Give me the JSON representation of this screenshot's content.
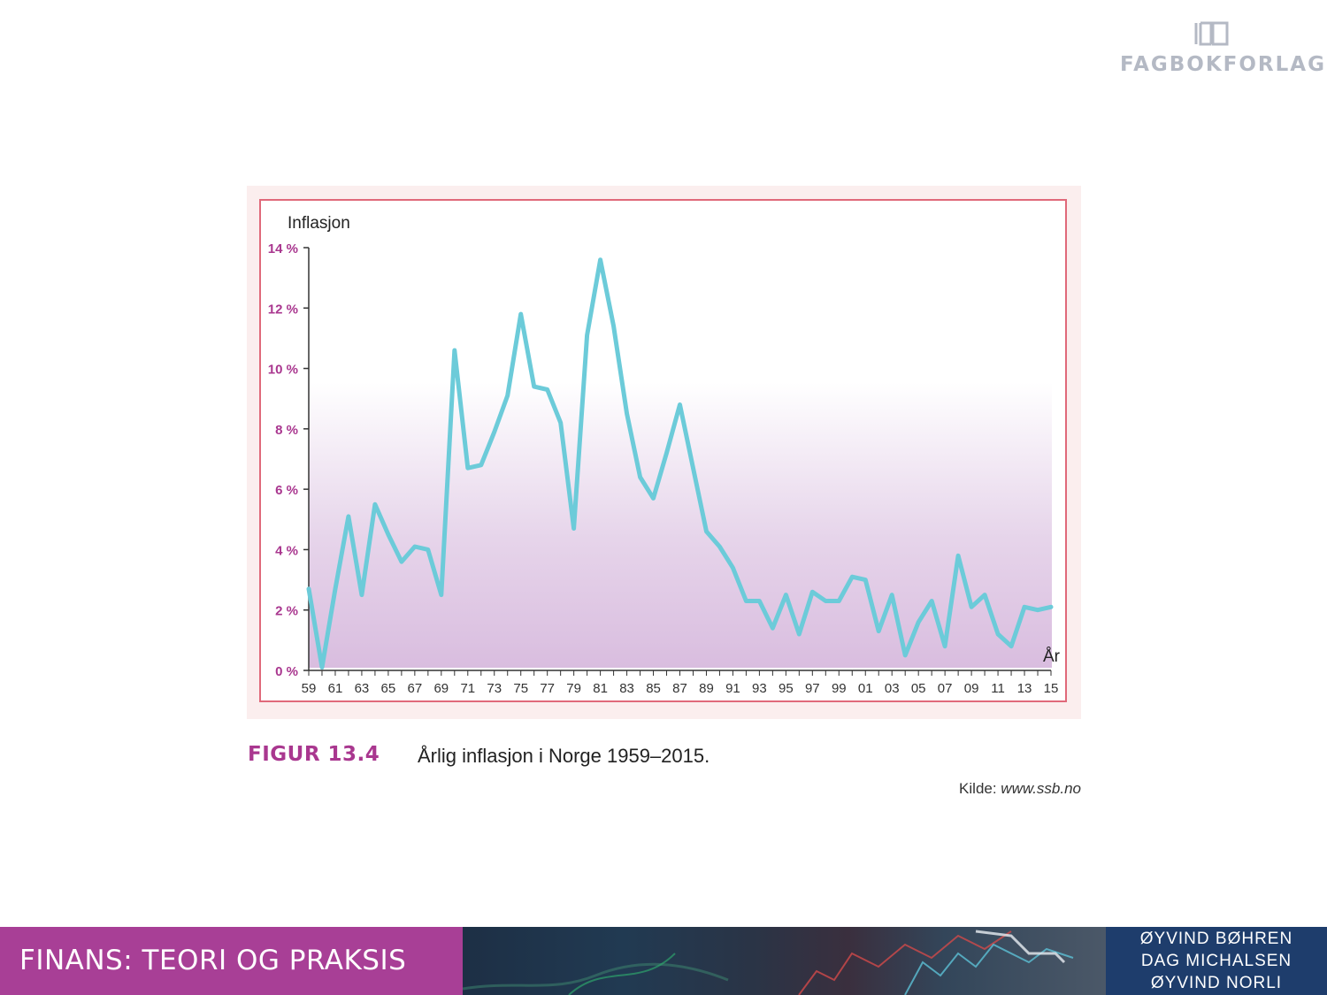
{
  "publisher": {
    "name": "FAGBOKFORLAGET",
    "icon": "book-logo-icon"
  },
  "figure": {
    "label": "FIGUR 13.4",
    "title": "Årlig inflasjon i Norge 1959–2015.",
    "source_prefix": "Kilde: ",
    "source_url": "www.ssb.no"
  },
  "footer": {
    "title": "FINANS: TEORI OG PRAKSIS",
    "authors": [
      "ØYVIND BØHREN",
      "DAG MICHALSEN",
      "ØYVIND NORLI"
    ]
  },
  "colors": {
    "accent": "#a9378f",
    "line": "#6ccbd9",
    "frame": "#e0697a",
    "footer_left": "#a83f96",
    "footer_right": "#1e3d6c"
  },
  "chart_data": {
    "type": "line",
    "title": "",
    "ylabel": "Inflasjon",
    "xlabel": "År",
    "ylim": [
      0,
      14
    ],
    "xlim": [
      1959,
      2015
    ],
    "y_ticks": [
      0,
      2,
      4,
      6,
      8,
      10,
      12,
      14
    ],
    "y_tick_labels": [
      "0 %",
      "2 %",
      "4 %",
      "6 %",
      "8 %",
      "10 %",
      "12 %",
      "14 %"
    ],
    "x_tick_years": [
      1959,
      1961,
      1963,
      1965,
      1967,
      1969,
      1971,
      1973,
      1975,
      1977,
      1979,
      1981,
      1983,
      1985,
      1987,
      1989,
      1991,
      1993,
      1995,
      1997,
      1999,
      2001,
      2003,
      2005,
      2007,
      2009,
      2011,
      2013,
      2015
    ],
    "x_tick_labels": [
      "59",
      "61",
      "63",
      "65",
      "67",
      "69",
      "71",
      "73",
      "75",
      "77",
      "79",
      "81",
      "83",
      "85",
      "87",
      "89",
      "91",
      "93",
      "95",
      "97",
      "99",
      "01",
      "03",
      "05",
      "07",
      "09",
      "11",
      "13",
      "15"
    ],
    "series": [
      {
        "name": "Inflasjon",
        "x": [
          1959,
          1960,
          1961,
          1962,
          1963,
          1964,
          1965,
          1966,
          1967,
          1968,
          1969,
          1970,
          1971,
          1972,
          1973,
          1974,
          1975,
          1976,
          1977,
          1978,
          1979,
          1980,
          1981,
          1982,
          1983,
          1984,
          1985,
          1986,
          1987,
          1988,
          1989,
          1990,
          1991,
          1992,
          1993,
          1994,
          1995,
          1996,
          1997,
          1998,
          1999,
          2000,
          2001,
          2002,
          2003,
          2004,
          2005,
          2006,
          2007,
          2008,
          2009,
          2010,
          2011,
          2012,
          2013,
          2014,
          2015
        ],
        "values": [
          2.7,
          0.1,
          2.7,
          5.1,
          2.5,
          5.5,
          4.5,
          3.6,
          4.1,
          4.0,
          2.5,
          10.6,
          6.7,
          6.8,
          7.9,
          9.1,
          11.8,
          9.4,
          9.3,
          8.2,
          4.7,
          11.1,
          13.6,
          11.4,
          8.5,
          6.4,
          5.7,
          7.2,
          8.8,
          6.7,
          4.6,
          4.1,
          3.4,
          2.3,
          2.3,
          1.4,
          2.5,
          1.2,
          2.6,
          2.3,
          2.3,
          3.1,
          3.0,
          1.3,
          2.5,
          0.5,
          1.6,
          2.3,
          0.8,
          3.8,
          2.1,
          2.5,
          1.2,
          0.8,
          2.1,
          2.0,
          2.1
        ]
      }
    ]
  }
}
